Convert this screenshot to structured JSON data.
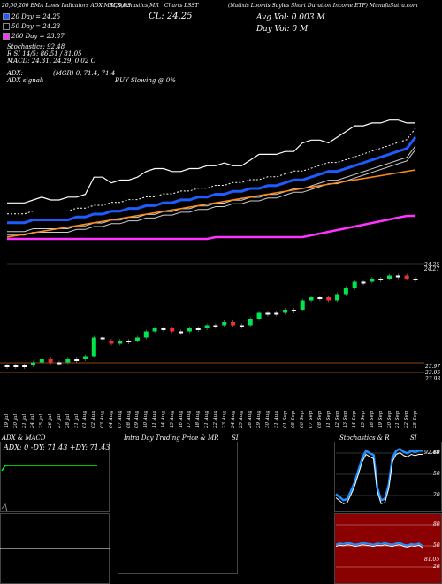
{
  "header": {
    "line1_left": "20,50,200  EMA Lines Indicators ADX,MACD,RS",
    "line1_mid": "SI,Stochastics,MR",
    "line1_mid2": "Charts LSST",
    "line1_right": "(Natixis Loomis Sayles Short Duration Income ETF) MunafaSutra.com",
    "ema20": "20 Day = 24.25",
    "ema50": "50 Day = 24.23",
    "ema200": "200 Day = 23.87",
    "close": "CL: 24.25",
    "avg_vol": "Avg Vol: 0.003 M",
    "day_vol": "Day Vol: 0   M",
    "stoch": "Stochastics: 92.48",
    "rsi": "R             SI 14/5: 86.51 / 81.05",
    "macd": "MACD: 24.31, 24.29, 0.02  C",
    "adx": "ADX:",
    "adx_val": "(MGR) 0, 71.4, 71.4",
    "adx_signal": "ADX  signal:",
    "buy_signal": "BUY Slowing @ 0%"
  },
  "colors": {
    "ema20": "#1e5cff",
    "ema50": "#ffffff",
    "ema200": "#ff33ff",
    "orange": "#ff8c1a",
    "up": "#00e64d",
    "down": "#ff2a2a",
    "volume_line": "#8b4513",
    "panel_red": "#8b0000",
    "stoch_blue": "#1e90ff",
    "adx_green": "#00ff00"
  },
  "price_labels": {
    "top1": "24.25",
    "top2": "24.27",
    "low1": "23.97",
    "low2": "23.95",
    "low3": "23.93"
  },
  "bottom": {
    "adx_title": "ADX  & MACD",
    "adx_readout": "ADX: 0  -DY: 71.43  +DY: 71.43",
    "intra_title": "Intra  Day Trading Price  & MR",
    "intra_si": "SI",
    "stoch_title": "Stochastics & R",
    "stoch_si": "SI",
    "stoch_ticks": [
      "80",
      "50",
      "20"
    ],
    "stoch_label": "92.48",
    "rsi_ticks": [
      "80",
      "50",
      "20"
    ],
    "rsi_label": "81.05"
  },
  "chart_data": {
    "type": "line",
    "title": "Natixis Loomis Sayles Short Duration Income ETF",
    "x": [
      "19 Jul",
      "20 Jul",
      "21 Jul",
      "24 Jul",
      "25 Jul",
      "26 Jul",
      "27 Jul",
      "28 Jul",
      "31 Jul",
      "01 Aug",
      "02 Aug",
      "03 Aug",
      "04 Aug",
      "07 Aug",
      "08 Aug",
      "09 Aug",
      "10 Aug",
      "11 Aug",
      "14 Aug",
      "15 Aug",
      "16 Aug",
      "17 Aug",
      "18 Aug",
      "21 Aug",
      "22 Aug",
      "23 Aug",
      "24 Aug",
      "25 Aug",
      "28 Aug",
      "29 Aug",
      "30 Aug",
      "31 Aug",
      "01 Sep",
      "05 Sep",
      "06 Sep",
      "07 Sep",
      "08 Sep",
      "11 Sep",
      "12 Sep",
      "13 Sep",
      "14 Sep",
      "15 Sep",
      "18 Sep",
      "19 Sep",
      "20 Sep",
      "21 Sep",
      "22 Sep",
      "25 Sep"
    ],
    "series": [
      {
        "name": "Close",
        "values": [
          23.97,
          23.97,
          23.97,
          23.98,
          23.99,
          23.98,
          23.98,
          23.99,
          23.99,
          24.0,
          24.06,
          24.06,
          24.04,
          24.05,
          24.05,
          24.06,
          24.08,
          24.09,
          24.09,
          24.08,
          24.08,
          24.09,
          24.09,
          24.1,
          24.1,
          24.11,
          24.1,
          24.1,
          24.12,
          24.14,
          24.14,
          24.14,
          24.15,
          24.15,
          24.18,
          24.19,
          24.19,
          24.18,
          24.2,
          24.22,
          24.24,
          24.24,
          24.25,
          24.25,
          24.26,
          24.26,
          24.25,
          24.25
        ]
      },
      {
        "name": "20 Day",
        "values": [
          23.95,
          23.95,
          23.95,
          23.96,
          23.96,
          23.96,
          23.96,
          23.96,
          23.97,
          23.97,
          23.98,
          23.98,
          23.99,
          23.99,
          24.0,
          24.0,
          24.01,
          24.01,
          24.02,
          24.02,
          24.03,
          24.03,
          24.04,
          24.04,
          24.05,
          24.05,
          24.06,
          24.06,
          24.07,
          24.07,
          24.08,
          24.08,
          24.09,
          24.1,
          24.1,
          24.11,
          24.12,
          24.13,
          24.13,
          24.14,
          24.15,
          24.16,
          24.17,
          24.18,
          24.19,
          24.2,
          24.21,
          24.25
        ]
      },
      {
        "name": "200 Day",
        "values": [
          23.87,
          23.87,
          23.87,
          23.87,
          23.87,
          23.87,
          23.87,
          23.87,
          23.87,
          23.87,
          23.87,
          23.87,
          23.87,
          23.87,
          23.87,
          23.87,
          23.87,
          23.87,
          23.87,
          23.87,
          23.87,
          23.87,
          23.87,
          23.87,
          23.87,
          23.87,
          23.87,
          23.87,
          23.87,
          23.87,
          23.87,
          23.87,
          23.87,
          23.87,
          23.87,
          23.87,
          23.87,
          23.87,
          23.87,
          23.87,
          23.87,
          23.87,
          23.87,
          23.87,
          23.87,
          23.87,
          23.87,
          23.87
        ]
      }
    ],
    "candles": [
      {
        "o": 23.97,
        "c": 23.97
      },
      {
        "o": 23.97,
        "c": 23.97
      },
      {
        "o": 23.97,
        "c": 23.97
      },
      {
        "o": 23.97,
        "c": 23.98
      },
      {
        "o": 23.98,
        "c": 23.99
      },
      {
        "o": 23.99,
        "c": 23.98
      },
      {
        "o": 23.98,
        "c": 23.98
      },
      {
        "o": 23.98,
        "c": 23.99
      },
      {
        "o": 23.99,
        "c": 23.99
      },
      {
        "o": 23.99,
        "c": 24.0
      },
      {
        "o": 24.0,
        "c": 24.06
      },
      {
        "o": 24.06,
        "c": 24.06
      },
      {
        "o": 24.05,
        "c": 24.04
      },
      {
        "o": 24.04,
        "c": 24.05
      },
      {
        "o": 24.05,
        "c": 24.05
      },
      {
        "o": 24.05,
        "c": 24.06
      },
      {
        "o": 24.06,
        "c": 24.08
      },
      {
        "o": 24.08,
        "c": 24.09
      },
      {
        "o": 24.09,
        "c": 24.09
      },
      {
        "o": 24.09,
        "c": 24.08
      },
      {
        "o": 24.08,
        "c": 24.08
      },
      {
        "o": 24.08,
        "c": 24.09
      },
      {
        "o": 24.09,
        "c": 24.09
      },
      {
        "o": 24.09,
        "c": 24.1
      },
      {
        "o": 24.1,
        "c": 24.1
      },
      {
        "o": 24.1,
        "c": 24.11
      },
      {
        "o": 24.11,
        "c": 24.1
      },
      {
        "o": 24.1,
        "c": 24.1
      },
      {
        "o": 24.1,
        "c": 24.12
      },
      {
        "o": 24.12,
        "c": 24.14
      },
      {
        "o": 24.14,
        "c": 24.14
      },
      {
        "o": 24.14,
        "c": 24.14
      },
      {
        "o": 24.14,
        "c": 24.15
      },
      {
        "o": 24.15,
        "c": 24.15
      },
      {
        "o": 24.15,
        "c": 24.18
      },
      {
        "o": 24.18,
        "c": 24.19
      },
      {
        "o": 24.19,
        "c": 24.19
      },
      {
        "o": 24.19,
        "c": 24.18
      },
      {
        "o": 24.18,
        "c": 24.2
      },
      {
        "o": 24.2,
        "c": 24.22
      },
      {
        "o": 24.22,
        "c": 24.24
      },
      {
        "o": 24.24,
        "c": 24.24
      },
      {
        "o": 24.24,
        "c": 24.25
      },
      {
        "o": 24.25,
        "c": 24.25
      },
      {
        "o": 24.25,
        "c": 24.26
      },
      {
        "o": 24.26,
        "c": 24.26
      },
      {
        "o": 24.26,
        "c": 24.25
      },
      {
        "o": 24.25,
        "c": 24.25
      }
    ],
    "stochastics": [
      20,
      15,
      10,
      12,
      25,
      40,
      60,
      80,
      92,
      88,
      85,
      30,
      10,
      12,
      35,
      80,
      92,
      95,
      90,
      88,
      92,
      90,
      92,
      92
    ],
    "rsi": [
      55,
      57,
      56,
      58,
      57,
      55,
      56,
      58,
      57,
      56,
      55,
      57,
      56,
      58,
      56,
      55,
      57,
      58,
      55,
      54,
      56,
      55,
      57,
      53
    ]
  }
}
